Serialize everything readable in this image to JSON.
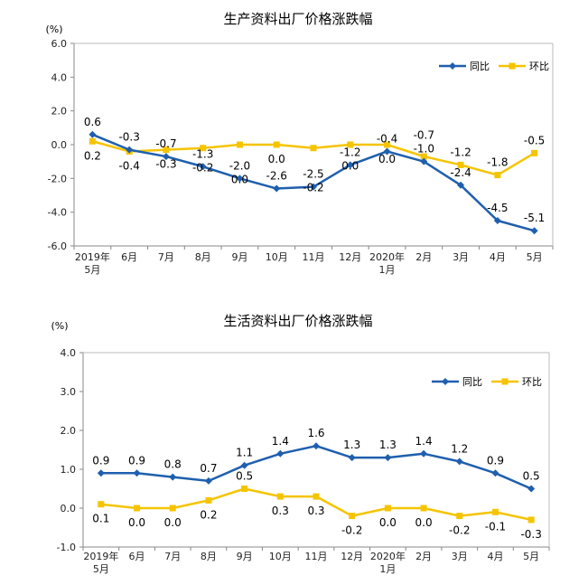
{
  "chart_data": [
    {
      "type": "line",
      "title": "生产资料出厂价格涨跌幅",
      "unit": "(%)",
      "ylim": [
        -6.0,
        6.0
      ],
      "yticks": [
        "6.0",
        "4.0",
        "2.0",
        "0.0",
        "-2.0",
        "-4.0",
        "-6.0"
      ],
      "categories": [
        [
          "2019年",
          "5月"
        ],
        [
          "6月"
        ],
        [
          "7月"
        ],
        [
          "8月"
        ],
        [
          "9月"
        ],
        [
          "10月"
        ],
        [
          "11月"
        ],
        [
          "12月"
        ],
        [
          "2020年",
          "1月"
        ],
        [
          "2月"
        ],
        [
          "3月"
        ],
        [
          "4月"
        ],
        [
          "5月"
        ]
      ],
      "series": [
        {
          "name": "同比",
          "color": "#1f5fae",
          "values": [
            0.6,
            -0.3,
            -0.7,
            -1.3,
            -2.0,
            -2.6,
            -2.5,
            -1.2,
            -0.4,
            -1.0,
            -2.4,
            -4.5,
            -5.1
          ],
          "labels": [
            "0.6",
            "-0.3",
            "-0.7",
            "-1.3",
            "-2.0",
            "-2.6",
            "-2.5",
            "-1.2",
            "-0.4",
            "-1.0",
            "-2.4",
            "-4.5",
            "-5.1"
          ]
        },
        {
          "name": "环比",
          "color": "#f5c400",
          "values": [
            0.2,
            -0.4,
            -0.3,
            -0.2,
            0.0,
            0.0,
            -0.2,
            0.0,
            0.0,
            -0.7,
            -1.2,
            -1.8,
            -0.5
          ],
          "labels": [
            "0.2",
            "-0.4",
            "-0.3",
            "-0.2",
            "0.0",
            "0.0",
            "-0.2",
            "0.0",
            "0.0",
            "-0.7",
            "-1.2",
            "-1.8",
            "-0.5"
          ]
        }
      ]
    },
    {
      "type": "line",
      "title": "生活资料出厂价格涨跌幅",
      "unit": "(%)",
      "ylim": [
        -1.0,
        4.0
      ],
      "yticks": [
        "4.0",
        "3.0",
        "2.0",
        "1.0",
        "0.0",
        "-1.0"
      ],
      "categories": [
        [
          "2019年",
          "5月"
        ],
        [
          "6月"
        ],
        [
          "7月"
        ],
        [
          "8月"
        ],
        [
          "9月"
        ],
        [
          "10月"
        ],
        [
          "11月"
        ],
        [
          "12月"
        ],
        [
          "2020年",
          "1月"
        ],
        [
          "2月"
        ],
        [
          "3月"
        ],
        [
          "4月"
        ],
        [
          "5月"
        ]
      ],
      "series": [
        {
          "name": "同比",
          "color": "#1f5fae",
          "values": [
            0.9,
            0.9,
            0.8,
            0.7,
            1.1,
            1.4,
            1.6,
            1.3,
            1.3,
            1.4,
            1.2,
            0.9,
            0.5
          ],
          "labels": [
            "0.9",
            "0.9",
            "0.8",
            "0.7",
            "1.1",
            "1.4",
            "1.6",
            "1.3",
            "1.3",
            "1.4",
            "1.2",
            "0.9",
            "0.5"
          ]
        },
        {
          "name": "环比",
          "color": "#f5c400",
          "values": [
            0.1,
            0.0,
            0.0,
            0.2,
            0.5,
            0.3,
            0.3,
            -0.2,
            0.0,
            0.0,
            -0.2,
            -0.1,
            -0.3
          ],
          "labels": [
            "0.1",
            "0.0",
            "0.0",
            "0.2",
            "0.5",
            "0.3",
            "0.3",
            "-0.2",
            "0.0",
            "0.0",
            "-0.2",
            "-0.1",
            "-0.3"
          ]
        }
      ]
    }
  ]
}
